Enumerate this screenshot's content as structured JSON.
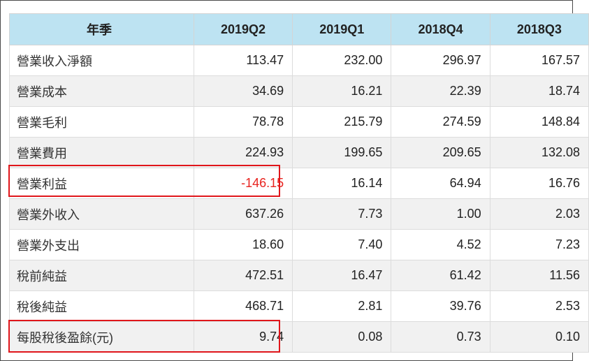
{
  "table": {
    "headers": [
      "年季",
      "2019Q2",
      "2019Q1",
      "2018Q4",
      "2018Q3"
    ],
    "rows": [
      {
        "label": "營業收入淨額",
        "values": [
          "113.47",
          "232.00",
          "296.97",
          "167.57"
        ]
      },
      {
        "label": "營業成本",
        "values": [
          "34.69",
          "16.21",
          "22.39",
          "18.74"
        ]
      },
      {
        "label": "營業毛利",
        "values": [
          "78.78",
          "215.79",
          "274.59",
          "148.84"
        ]
      },
      {
        "label": "營業費用",
        "values": [
          "224.93",
          "199.65",
          "209.65",
          "132.08"
        ]
      },
      {
        "label": "營業利益",
        "values": [
          "-146.15",
          "16.14",
          "64.94",
          "16.76"
        ]
      },
      {
        "label": "營業外收入",
        "values": [
          "637.26",
          "7.73",
          "1.00",
          "2.03"
        ]
      },
      {
        "label": "營業外支出",
        "values": [
          "18.60",
          "7.40",
          "4.52",
          "7.23"
        ]
      },
      {
        "label": "稅前純益",
        "values": [
          "472.51",
          "16.47",
          "61.42",
          "11.56"
        ]
      },
      {
        "label": "稅後純益",
        "values": [
          "468.71",
          "2.81",
          "39.76",
          "2.53"
        ]
      },
      {
        "label": "每股稅後盈餘(元)",
        "values": [
          "9.74",
          "0.08",
          "0.73",
          "0.10"
        ]
      }
    ]
  },
  "colors": {
    "header_bg": "#bde3f2",
    "negative_text": "#e8231f",
    "highlight_border": "#e0161b",
    "stripe_bg": "#f1f1f1"
  },
  "highlighted_rows": [
    "營業利益",
    "每股稅後盈餘(元)"
  ]
}
